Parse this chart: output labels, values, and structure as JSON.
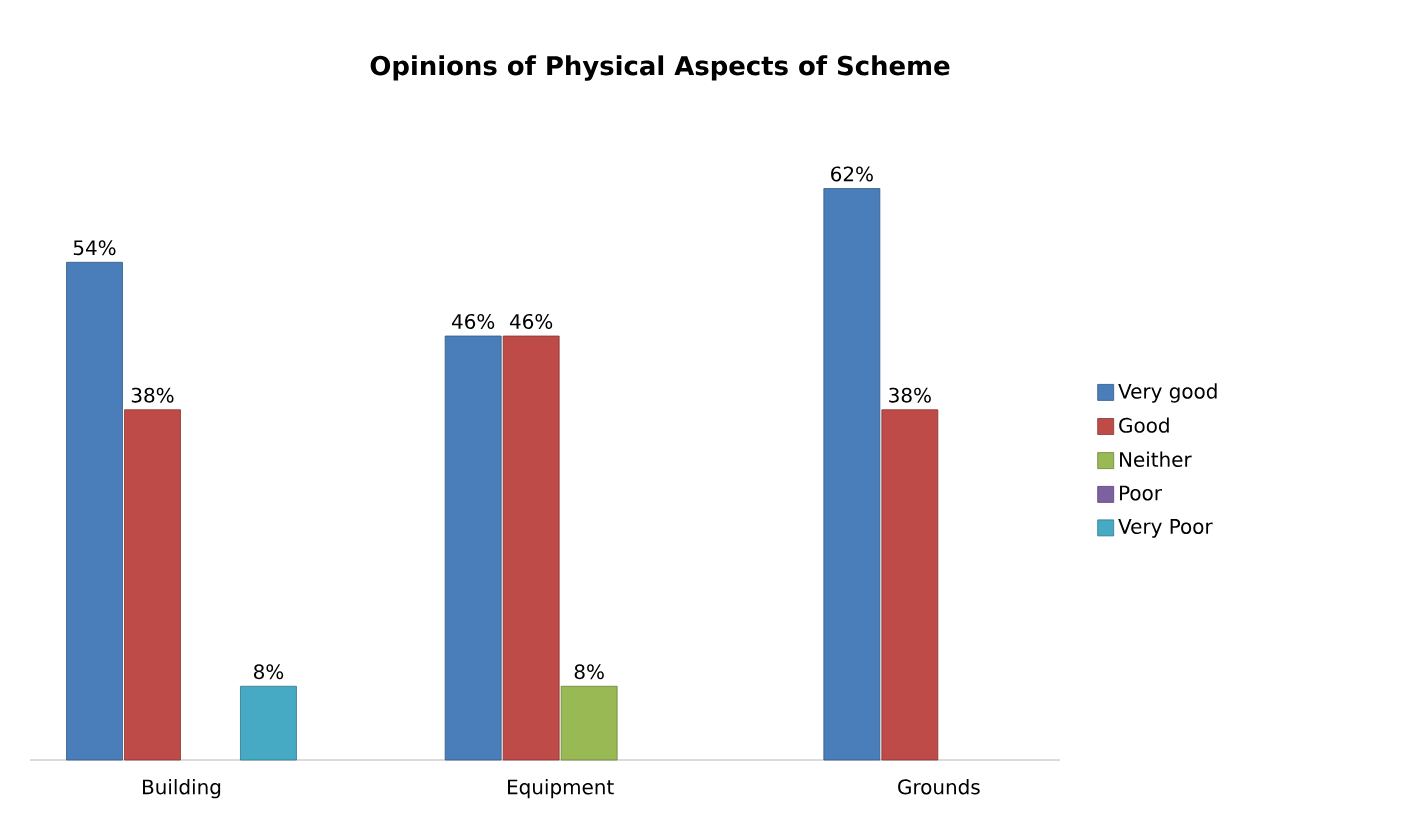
{
  "chart_data": {
    "type": "bar",
    "title": "Opinions of Physical Aspects of Scheme",
    "categories": [
      "Building",
      "Equipment",
      "Grounds"
    ],
    "series": [
      {
        "name": "Very good",
        "color": "#4a7ebb",
        "values": [
          54,
          46,
          62
        ],
        "value_labels": [
          "54%",
          "46%",
          "62%"
        ]
      },
      {
        "name": "Good",
        "color": "#be4b48",
        "values": [
          38,
          46,
          38
        ],
        "value_labels": [
          "38%",
          "46%",
          "38%"
        ]
      },
      {
        "name": "Neither",
        "color": "#98b954",
        "values": [
          null,
          8,
          null
        ],
        "value_labels": [
          null,
          "8%",
          null
        ]
      },
      {
        "name": "Poor",
        "color": "#7d60a0",
        "values": [
          null,
          null,
          null
        ],
        "value_labels": [
          null,
          null,
          null
        ]
      },
      {
        "name": "Very Poor",
        "color": "#46aac5",
        "values": [
          8,
          null,
          null
        ],
        "value_labels": [
          "8%",
          null,
          null
        ]
      }
    ],
    "legend": "right"
  }
}
